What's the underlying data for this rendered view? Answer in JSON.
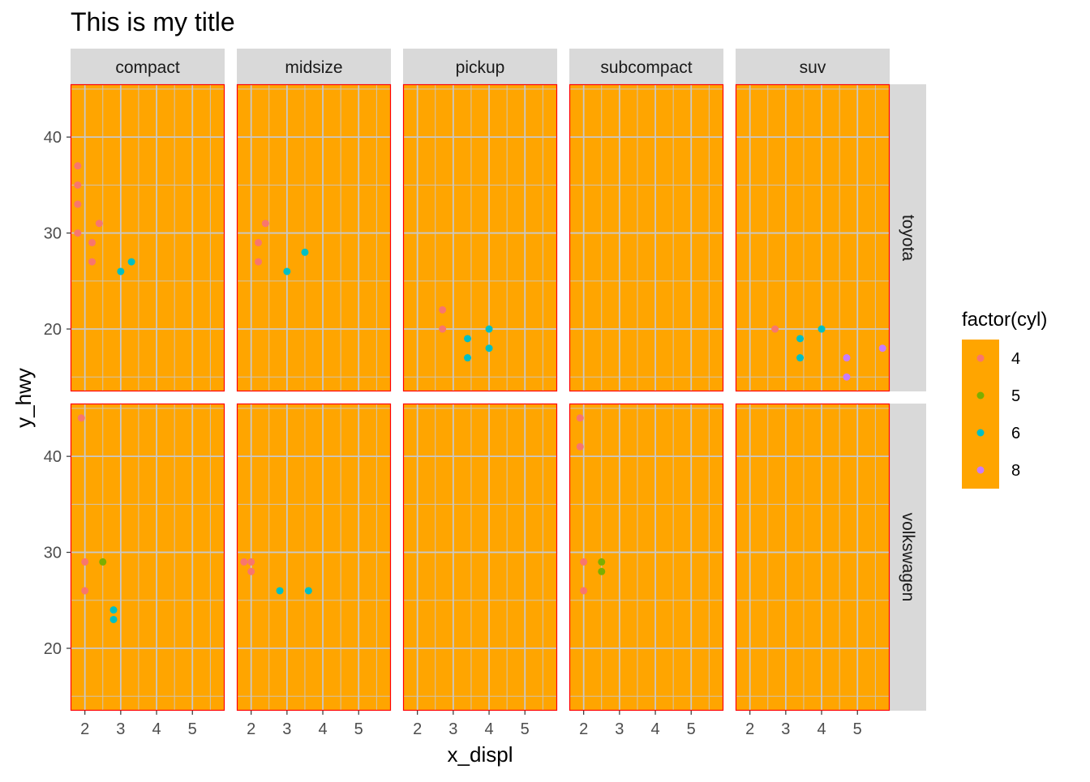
{
  "chart_data": {
    "type": "scatter",
    "title": "This is my title",
    "xlabel": "x_displ",
    "ylabel": "y_hwy",
    "xlim": [
      1.6,
      5.9
    ],
    "ylim": [
      13.5,
      45.5
    ],
    "xticks": [
      2,
      3,
      4,
      5
    ],
    "yticks": [
      20,
      30,
      40
    ],
    "grid": true,
    "panel_background": "#FFA500",
    "panel_border": "#FF0000",
    "grid_color": "#C8C8C8",
    "strip_background": "#D9D9D9",
    "col_facets": [
      "compact",
      "midsize",
      "pickup",
      "subcompact",
      "suv"
    ],
    "row_facets": [
      "toyota",
      "volkswagen"
    ],
    "legend": {
      "title": "factor(cyl)",
      "position": "right",
      "entries": [
        {
          "label": "4",
          "color": "#F8766D"
        },
        {
          "label": "5",
          "color": "#7CAE00"
        },
        {
          "label": "6",
          "color": "#00BFC4"
        },
        {
          "label": "8",
          "color": "#C77CFF"
        }
      ]
    },
    "panels": [
      {
        "row": "toyota",
        "col": "compact",
        "points": [
          {
            "x": 1.8,
            "y": 37,
            "cyl": "4"
          },
          {
            "x": 1.8,
            "y": 35,
            "cyl": "4"
          },
          {
            "x": 1.8,
            "y": 33,
            "cyl": "4"
          },
          {
            "x": 1.8,
            "y": 30,
            "cyl": "4"
          },
          {
            "x": 2.2,
            "y": 29,
            "cyl": "4"
          },
          {
            "x": 2.2,
            "y": 27,
            "cyl": "4"
          },
          {
            "x": 2.4,
            "y": 31,
            "cyl": "4"
          },
          {
            "x": 3.0,
            "y": 26,
            "cyl": "6"
          },
          {
            "x": 3.3,
            "y": 27,
            "cyl": "6"
          }
        ]
      },
      {
        "row": "toyota",
        "col": "midsize",
        "points": [
          {
            "x": 2.2,
            "y": 29,
            "cyl": "4"
          },
          {
            "x": 2.2,
            "y": 27,
            "cyl": "4"
          },
          {
            "x": 2.4,
            "y": 31,
            "cyl": "4"
          },
          {
            "x": 3.0,
            "y": 26,
            "cyl": "6"
          },
          {
            "x": 3.5,
            "y": 28,
            "cyl": "6"
          }
        ]
      },
      {
        "row": "toyota",
        "col": "pickup",
        "points": [
          {
            "x": 2.7,
            "y": 22,
            "cyl": "4"
          },
          {
            "x": 2.7,
            "y": 20,
            "cyl": "4"
          },
          {
            "x": 3.4,
            "y": 19,
            "cyl": "6"
          },
          {
            "x": 3.4,
            "y": 17,
            "cyl": "6"
          },
          {
            "x": 4.0,
            "y": 20,
            "cyl": "6"
          },
          {
            "x": 4.0,
            "y": 18,
            "cyl": "6"
          }
        ]
      },
      {
        "row": "toyota",
        "col": "subcompact",
        "points": []
      },
      {
        "row": "toyota",
        "col": "suv",
        "points": [
          {
            "x": 2.7,
            "y": 20,
            "cyl": "4"
          },
          {
            "x": 3.4,
            "y": 19,
            "cyl": "6"
          },
          {
            "x": 3.4,
            "y": 17,
            "cyl": "6"
          },
          {
            "x": 4.0,
            "y": 20,
            "cyl": "6"
          },
          {
            "x": 4.7,
            "y": 17,
            "cyl": "8"
          },
          {
            "x": 4.7,
            "y": 15,
            "cyl": "8"
          },
          {
            "x": 5.7,
            "y": 18,
            "cyl": "8"
          }
        ]
      },
      {
        "row": "volkswagen",
        "col": "compact",
        "points": [
          {
            "x": 1.9,
            "y": 44,
            "cyl": "4"
          },
          {
            "x": 2.0,
            "y": 29,
            "cyl": "4"
          },
          {
            "x": 2.0,
            "y": 26,
            "cyl": "4"
          },
          {
            "x": 2.5,
            "y": 29,
            "cyl": "5"
          },
          {
            "x": 2.8,
            "y": 24,
            "cyl": "6"
          },
          {
            "x": 2.8,
            "y": 23,
            "cyl": "6"
          }
        ]
      },
      {
        "row": "volkswagen",
        "col": "midsize",
        "points": [
          {
            "x": 1.8,
            "y": 29,
            "cyl": "4"
          },
          {
            "x": 2.0,
            "y": 29,
            "cyl": "4"
          },
          {
            "x": 2.0,
            "y": 28,
            "cyl": "4"
          },
          {
            "x": 2.8,
            "y": 26,
            "cyl": "6"
          },
          {
            "x": 3.6,
            "y": 26,
            "cyl": "6"
          }
        ]
      },
      {
        "row": "volkswagen",
        "col": "pickup",
        "points": []
      },
      {
        "row": "volkswagen",
        "col": "subcompact",
        "points": [
          {
            "x": 1.9,
            "y": 44,
            "cyl": "4"
          },
          {
            "x": 1.9,
            "y": 41,
            "cyl": "4"
          },
          {
            "x": 2.0,
            "y": 29,
            "cyl": "4"
          },
          {
            "x": 2.0,
            "y": 26,
            "cyl": "4"
          },
          {
            "x": 2.5,
            "y": 29,
            "cyl": "5"
          },
          {
            "x": 2.5,
            "y": 28,
            "cyl": "5"
          }
        ]
      },
      {
        "row": "volkswagen",
        "col": "suv",
        "points": []
      }
    ]
  }
}
